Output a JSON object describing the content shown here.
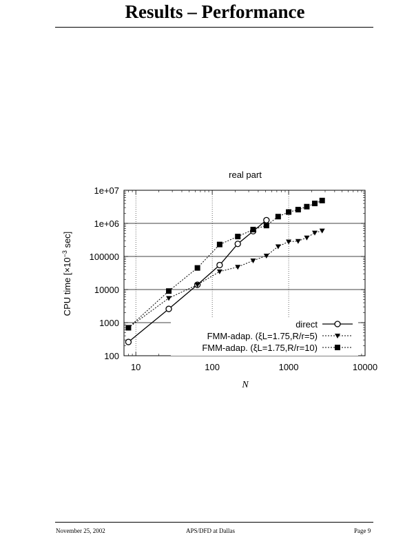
{
  "page": {
    "title": "Results – Performance",
    "footer_date": "November 25, 2002",
    "footer_center": "APS/DFD at Dallas",
    "footer_page": "Page 9"
  },
  "chart_data": {
    "type": "line",
    "title": "real part",
    "xlabel": "N",
    "ylabel_pre": "CPU time [×10",
    "ylabel_exp": "−3",
    "ylabel_post": " sec]",
    "xscale": "log",
    "yscale": "log",
    "xlim": [
      7,
      10000
    ],
    "ylim": [
      100,
      10000000
    ],
    "xticks": [
      10,
      100,
      1000,
      10000
    ],
    "xtick_labels": [
      "10",
      "100",
      "1000",
      "10000"
    ],
    "yticks": [
      100,
      1000,
      10000,
      100000,
      1000000,
      10000000
    ],
    "ytick_labels": [
      "100",
      "1000",
      "10000",
      "100000",
      "1e+06",
      "1e+07"
    ],
    "grid": true,
    "legend_position": "bottom-right",
    "series": [
      {
        "name": "direct",
        "marker": "open-circle",
        "line": "solid",
        "x": [
          8,
          27,
          64,
          125,
          216,
          343,
          512
        ],
        "y": [
          260,
          2600,
          14000,
          55000,
          240000,
          580000,
          1250000
        ]
      },
      {
        "name": "FMM-adap. (ξL=1.75,R/r=5)",
        "marker": "filled-triangle-down",
        "line": "dotted",
        "x": [
          8,
          27,
          64,
          125,
          216,
          343,
          512,
          729,
          1000,
          1331,
          1728,
          2197,
          2744
        ],
        "y": [
          700,
          5500,
          14000,
          35000,
          48000,
          75000,
          105000,
          200000,
          280000,
          290000,
          370000,
          520000,
          600000
        ]
      },
      {
        "name": "FMM-adap. (ξL=1.75,R/r=10)",
        "marker": "filled-square",
        "line": "dotted",
        "x": [
          8,
          27,
          64,
          125,
          216,
          343,
          512,
          729,
          1000,
          1331,
          1728,
          2197,
          2744
        ],
        "y": [
          700,
          9000,
          45000,
          230000,
          400000,
          650000,
          860000,
          1600000,
          2200000,
          2600000,
          3200000,
          4000000,
          4900000
        ]
      }
    ]
  }
}
